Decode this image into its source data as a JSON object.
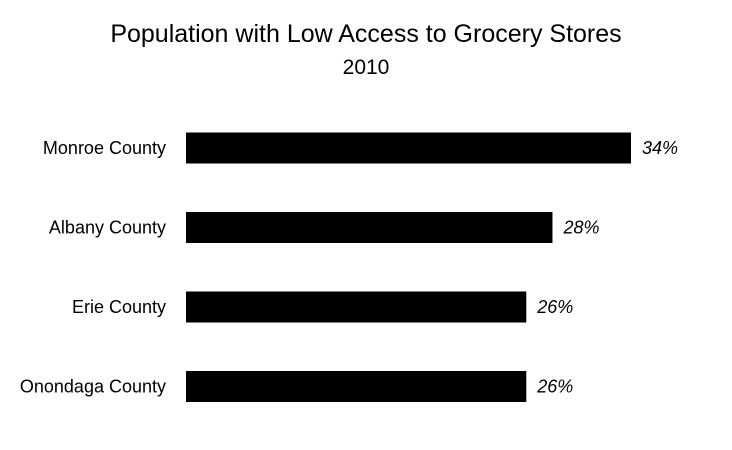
{
  "chart_data": {
    "type": "bar",
    "orientation": "horizontal",
    "title": "Population with Low Access to Grocery Stores",
    "subtitle": "2010",
    "xlabel": "",
    "ylabel": "",
    "categories": [
      "Monroe County",
      "Albany County",
      "Erie County",
      "Onondaga County"
    ],
    "values": [
      34,
      28,
      26,
      26
    ],
    "value_labels": [
      "34%",
      "28%",
      "26%",
      "26%"
    ],
    "unit": "%",
    "xlim": [
      0,
      34
    ],
    "grid": false,
    "legend": "none",
    "bar_color": "#000000"
  }
}
